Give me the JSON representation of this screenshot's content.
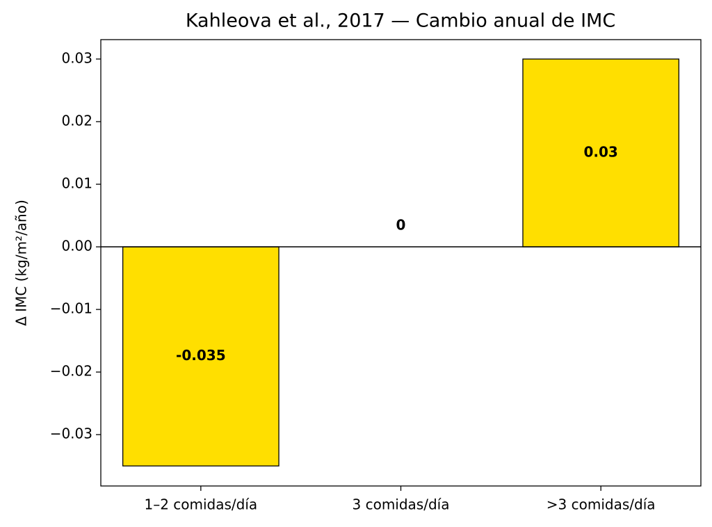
{
  "chart_data": {
    "type": "bar",
    "title": "Kahleova et al., 2017 — Cambio anual de IMC",
    "y_label": "Δ IMC (kg/m²/año)",
    "categories": [
      "1–2 comidas/día",
      "3 comidas/día",
      ">3 comidas/día"
    ],
    "values": [
      -0.035,
      0,
      0.03
    ],
    "color": "#ffdf00",
    "ylim": [
      -0.0382,
      0.0331
    ],
    "yticks": [
      {
        "value": -0.03,
        "label": "−0.03"
      },
      {
        "value": -0.02,
        "label": "−0.02"
      },
      {
        "value": -0.01,
        "label": "−0.01"
      },
      {
        "value": 0,
        "label": "0.00"
      },
      0.01,
      0.02,
      0.03
    ],
    "grid": false
  }
}
